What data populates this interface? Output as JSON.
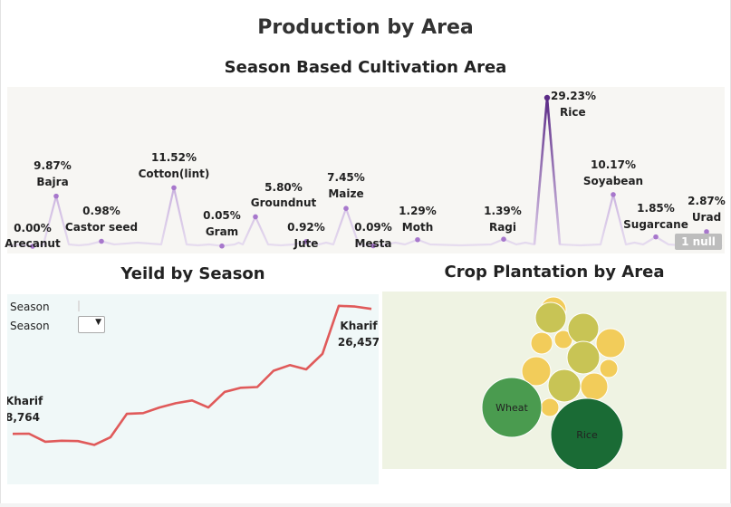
{
  "dashboard": {
    "title": "Production by Area"
  },
  "chart_data": [
    {
      "type": "line",
      "title": "Season Based Cultivation Area",
      "unit": "%",
      "accent_color": "#5b2a86",
      "series": [
        {
          "name": "",
          "label": "Arecanut",
          "value": 0.0,
          "display": "0.00%"
        },
        {
          "name": "",
          "label": "Bajra",
          "value": 9.87,
          "display": "9.87%"
        },
        {
          "name": "",
          "label": "Castor seed",
          "value": 0.98,
          "display": "0.98%"
        },
        {
          "name": "",
          "label": "Cotton(lint)",
          "value": 11.52,
          "display": "11.52%"
        },
        {
          "name": "",
          "label": "Gram",
          "value": 0.05,
          "display": "0.05%"
        },
        {
          "name": "",
          "label": "Groundnut",
          "value": 5.8,
          "display": "5.80%"
        },
        {
          "name": "",
          "label": "Jute",
          "value": 0.92,
          "display": "0.92%"
        },
        {
          "name": "",
          "label": "Maize",
          "value": 7.45,
          "display": "7.45%"
        },
        {
          "name": "",
          "label": "Mesta",
          "value": 0.09,
          "display": "0.09%"
        },
        {
          "name": "",
          "label": "Moth",
          "value": 1.29,
          "display": "1.29%"
        },
        {
          "name": "",
          "label": "Ragi",
          "value": 1.39,
          "display": "1.39%"
        },
        {
          "name": "",
          "label": "Rice",
          "value": 29.23,
          "display": "29.23%"
        },
        {
          "name": "",
          "label": "Soyabean",
          "value": 10.17,
          "display": "10.17%"
        },
        {
          "name": "",
          "label": "Sugarcane",
          "value": 1.85,
          "display": "1.85%"
        },
        {
          "name": "",
          "label": "Urad",
          "value": 2.87,
          "display": "2.87%"
        }
      ],
      "null_indicator": "1 null"
    },
    {
      "type": "line",
      "title": "Yeild by Season",
      "line_color": "#e05a5a",
      "filters": [
        {
          "label": "Season",
          "value": ""
        },
        {
          "label": "Season",
          "value": ""
        }
      ],
      "values": [
        8764,
        8800,
        7650,
        7800,
        7750,
        7200,
        8300,
        11600,
        11700,
        12500,
        13100,
        13500,
        12500,
        14700,
        15300,
        15400,
        17700,
        18500,
        17900,
        20100,
        26900,
        26800,
        26457
      ],
      "annotations": [
        {
          "series": "Kharif",
          "value": "8,764",
          "position": "start"
        },
        {
          "series": "Kharif",
          "value": "26,457",
          "position": "end"
        }
      ]
    },
    {
      "type": "bubble",
      "title": "Crop Plantation by Area",
      "labeled_bubbles": [
        "Wheat",
        "Rice"
      ],
      "colors": {
        "rice": "#1a6b35",
        "wheat": "#4a9b4f",
        "olive": "#c8c455",
        "yellow": "#f2cc5a"
      }
    }
  ]
}
